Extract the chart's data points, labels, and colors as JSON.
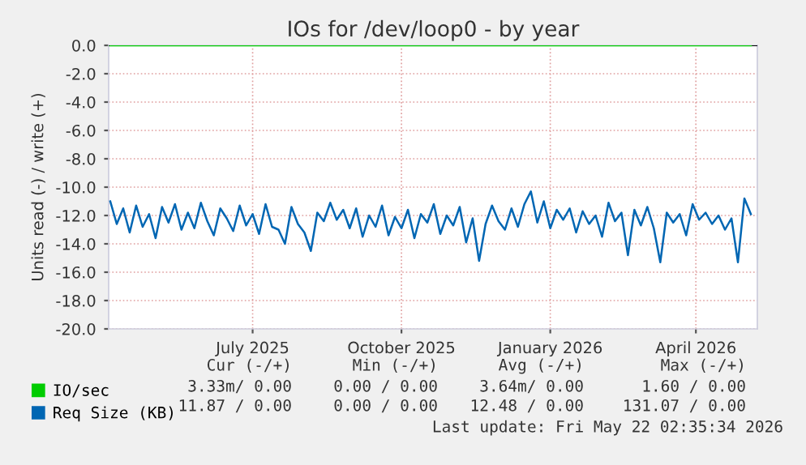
{
  "chart_data": {
    "type": "line",
    "title": "IOs for /dev/loop0 - by year",
    "ylabel": "Units read (-) / write (+)",
    "xlim": [
      "2025-04-03",
      "2026-05-09"
    ],
    "xticks": [
      {
        "value": "2025-07-01",
        "label": "July 2025"
      },
      {
        "value": "2025-10-01",
        "label": "October 2025"
      },
      {
        "value": "2026-01-01",
        "label": "January 2026"
      },
      {
        "value": "2026-04-01",
        "label": "April 2026"
      }
    ],
    "ylim": [
      -20,
      0
    ],
    "yticks": [
      {
        "value": 0,
        "label": "0.0"
      },
      {
        "value": -2,
        "label": "-2.0"
      },
      {
        "value": -4,
        "label": "-4.0"
      },
      {
        "value": -6,
        "label": "-6.0"
      },
      {
        "value": -8,
        "label": "-8.0"
      },
      {
        "value": -10,
        "label": "-10.0"
      },
      {
        "value": -12,
        "label": "-12.0"
      },
      {
        "value": -14,
        "label": "-14.0"
      },
      {
        "value": -16,
        "label": "-16.0"
      },
      {
        "value": -18,
        "label": "-18.0"
      },
      {
        "value": -20,
        "label": "-20.0"
      }
    ],
    "grid": true,
    "legend": "bottom left",
    "ref_lines": [
      {
        "axis": "y",
        "value": 0,
        "color": "#000000"
      }
    ],
    "series": [
      {
        "name": "IO/sec",
        "color": "#00cc00",
        "x": [
          "2025-04-04",
          "2026-05-05"
        ],
        "values": [
          0,
          0
        ]
      },
      {
        "name": "Req Size (KB)",
        "color": "#0066b3",
        "x": [
          "2025-04-04",
          "2025-04-08",
          "2025-04-12",
          "2025-04-16",
          "2025-04-20",
          "2025-04-24",
          "2025-04-28",
          "2025-05-02",
          "2025-05-06",
          "2025-05-10",
          "2025-05-14",
          "2025-05-18",
          "2025-05-22",
          "2025-05-26",
          "2025-05-30",
          "2025-06-03",
          "2025-06-07",
          "2025-06-11",
          "2025-06-15",
          "2025-06-19",
          "2025-06-23",
          "2025-06-27",
          "2025-07-01",
          "2025-07-05",
          "2025-07-09",
          "2025-07-13",
          "2025-07-17",
          "2025-07-21",
          "2025-07-25",
          "2025-07-29",
          "2025-08-02",
          "2025-08-06",
          "2025-08-10",
          "2025-08-14",
          "2025-08-18",
          "2025-08-22",
          "2025-08-26",
          "2025-08-30",
          "2025-09-03",
          "2025-09-07",
          "2025-09-11",
          "2025-09-15",
          "2025-09-19",
          "2025-09-23",
          "2025-09-27",
          "2025-10-01",
          "2025-10-05",
          "2025-10-09",
          "2025-10-13",
          "2025-10-17",
          "2025-10-21",
          "2025-10-25",
          "2025-10-29",
          "2025-11-02",
          "2025-11-06",
          "2025-11-10",
          "2025-11-14",
          "2025-11-18",
          "2025-11-22",
          "2025-11-26",
          "2025-11-30",
          "2025-12-04",
          "2025-12-08",
          "2025-12-12",
          "2025-12-16",
          "2025-12-20",
          "2025-12-24",
          "2025-12-28",
          "2026-01-01",
          "2026-01-05",
          "2026-01-09",
          "2026-01-13",
          "2026-01-17",
          "2026-01-21",
          "2026-01-25",
          "2026-01-29",
          "2026-02-02",
          "2026-02-06",
          "2026-02-10",
          "2026-02-14",
          "2026-02-18",
          "2026-02-22",
          "2026-02-26",
          "2026-03-02",
          "2026-03-06",
          "2026-03-10",
          "2026-03-14",
          "2026-03-18",
          "2026-03-22",
          "2026-03-26",
          "2026-03-30",
          "2026-04-03",
          "2026-04-07",
          "2026-04-11",
          "2026-04-15",
          "2026-04-19",
          "2026-04-23",
          "2026-04-27",
          "2026-05-01",
          "2026-05-05"
        ],
        "values": [
          -11.0,
          -12.6,
          -11.5,
          -13.2,
          -11.3,
          -12.8,
          -11.9,
          -13.6,
          -11.4,
          -12.5,
          -11.2,
          -13.0,
          -11.8,
          -12.9,
          -11.1,
          -12.4,
          -13.4,
          -11.5,
          -12.2,
          -13.1,
          -11.3,
          -12.7,
          -11.9,
          -13.3,
          -11.2,
          -12.8,
          -13.0,
          -14.0,
          -11.4,
          -12.6,
          -13.2,
          -14.5,
          -11.8,
          -12.4,
          -11.1,
          -12.3,
          -11.6,
          -12.9,
          -11.5,
          -13.5,
          -12.0,
          -12.8,
          -11.3,
          -13.4,
          -12.1,
          -12.9,
          -11.6,
          -13.6,
          -11.9,
          -12.5,
          -11.2,
          -13.3,
          -12.0,
          -12.7,
          -11.4,
          -13.9,
          -12.2,
          -15.2,
          -12.6,
          -11.3,
          -12.4,
          -13.0,
          -11.5,
          -12.8,
          -11.2,
          -10.3,
          -12.5,
          -11.0,
          -12.9,
          -11.6,
          -12.3,
          -11.5,
          -13.2,
          -11.7,
          -12.6,
          -12.0,
          -13.5,
          -11.1,
          -12.4,
          -11.8,
          -14.8,
          -11.6,
          -12.7,
          -11.4,
          -12.9,
          -15.3,
          -11.8,
          -12.5,
          -11.9,
          -13.4,
          -11.2,
          -12.3,
          -11.8,
          -12.6,
          -12.0,
          -13.0,
          -12.2,
          -15.3,
          -10.8,
          -11.9
        ]
      }
    ],
    "annotations": [
      "Cur (-/+)",
      "Min (-/+)",
      "Avg (-/+)",
      "Max (-/+)",
      "3.33m/ 0.00",
      "0.00 / 0.00",
      "3.64m/ 0.00",
      "1.60 / 0.00",
      "11.87 / 0.00",
      "0.00 / 0.00",
      "12.48 / 0.00",
      "131.07 / 0.00",
      "Last update: Fri May 22 02:35:34 2026"
    ]
  }
}
